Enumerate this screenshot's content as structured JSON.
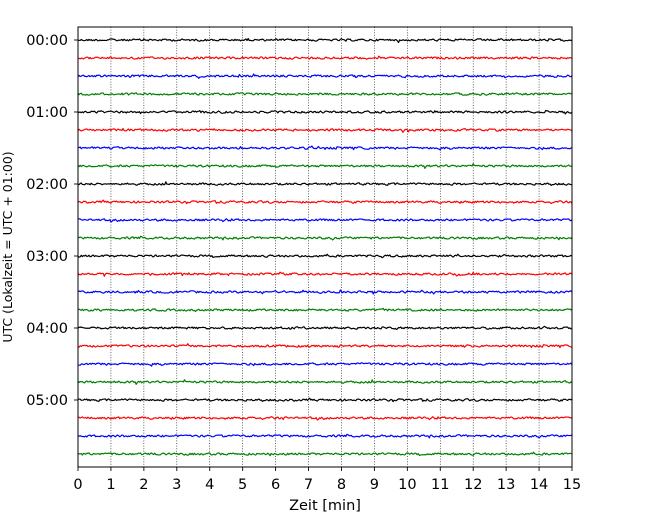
{
  "chart_data": {
    "type": "line",
    "title": "",
    "xlabel": "Zeit  [min]",
    "ylabel": "UTC (Lokalzeit = UTC + 01:00)",
    "xlim": [
      0,
      15
    ],
    "x_ticks": [
      "0",
      "1",
      "2",
      "3",
      "4",
      "5",
      "6",
      "7",
      "8",
      "9",
      "10",
      "11",
      "12",
      "13",
      "14",
      "15"
    ],
    "y_tick_labels": [
      "00:00",
      "01:00",
      "02:00",
      "03:00",
      "04:00",
      "05:00"
    ],
    "grid": "vertical dotted lines at every minute",
    "legend": "none",
    "trace_colors": [
      "#000000",
      "#ff0000",
      "#0000ff",
      "#008000"
    ],
    "series": [
      {
        "start": "00:00",
        "color": "#000000"
      },
      {
        "start": "00:15",
        "color": "#ff0000"
      },
      {
        "start": "00:30",
        "color": "#0000ff"
      },
      {
        "start": "00:45",
        "color": "#008000"
      },
      {
        "start": "01:00",
        "color": "#000000"
      },
      {
        "start": "01:15",
        "color": "#ff0000"
      },
      {
        "start": "01:30",
        "color": "#0000ff"
      },
      {
        "start": "01:45",
        "color": "#008000"
      },
      {
        "start": "02:00",
        "color": "#000000"
      },
      {
        "start": "02:15",
        "color": "#ff0000"
      },
      {
        "start": "02:30",
        "color": "#0000ff"
      },
      {
        "start": "02:45",
        "color": "#008000"
      },
      {
        "start": "03:00",
        "color": "#000000"
      },
      {
        "start": "03:15",
        "color": "#ff0000"
      },
      {
        "start": "03:30",
        "color": "#0000ff"
      },
      {
        "start": "03:45",
        "color": "#008000"
      },
      {
        "start": "04:00",
        "color": "#000000"
      },
      {
        "start": "04:15",
        "color": "#ff0000"
      },
      {
        "start": "04:30",
        "color": "#0000ff"
      },
      {
        "start": "04:45",
        "color": "#008000"
      },
      {
        "start": "05:00",
        "color": "#000000"
      },
      {
        "start": "05:15",
        "color": "#ff0000"
      },
      {
        "start": "05:30",
        "color": "#0000ff"
      },
      {
        "start": "05:45",
        "color": "#008000"
      }
    ]
  }
}
